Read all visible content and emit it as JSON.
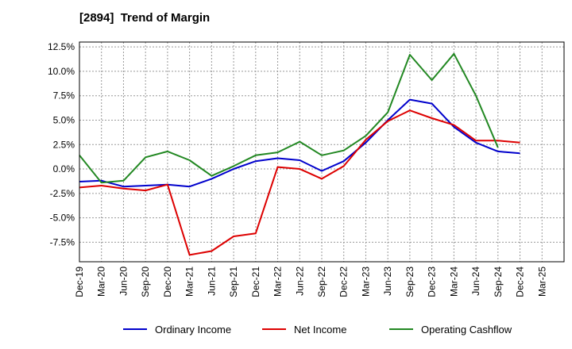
{
  "chart_data": {
    "type": "line",
    "title": "[2894]  Trend of Margin",
    "xlabel": "",
    "ylabel": "",
    "x_ticks": [
      "Dec-19",
      "Mar-20",
      "Jun-20",
      "Sep-20",
      "Dec-20",
      "Mar-21",
      "Jun-21",
      "Sep-21",
      "Dec-21",
      "Mar-22",
      "Jun-22",
      "Sep-22",
      "Dec-22",
      "Mar-23",
      "Jun-23",
      "Sep-23",
      "Dec-23",
      "Mar-24",
      "Jun-24",
      "Sep-24",
      "Dec-24",
      "Mar-25"
    ],
    "y_ticks": [
      "12.5%",
      "10.0%",
      "7.5%",
      "5.0%",
      "2.5%",
      "0.0%",
      "-2.5%",
      "-5.0%",
      "-7.5%"
    ],
    "y_tick_values": [
      12.5,
      10.0,
      7.5,
      5.0,
      2.5,
      0.0,
      -2.5,
      -5.0,
      -7.5
    ],
    "ylim": [
      -9.5,
      13.0
    ],
    "grid": true,
    "legend_position": "bottom",
    "series": [
      {
        "name": "Ordinary Income",
        "color": "#0000cc",
        "values": [
          -1.3,
          -1.2,
          -1.8,
          -1.7,
          -1.6,
          -1.8,
          -1.0,
          0.0,
          0.8,
          1.1,
          0.9,
          -0.2,
          0.8,
          2.7,
          5.0,
          7.1,
          6.7,
          4.3,
          2.7,
          1.8,
          1.6
        ]
      },
      {
        "name": "Net Income",
        "color": "#dd0000",
        "values": [
          -1.9,
          -1.7,
          -2.0,
          -2.2,
          -1.6,
          -8.8,
          -8.4,
          -6.9,
          -6.6,
          0.2,
          0.0,
          -1.0,
          0.3,
          3.0,
          4.9,
          6.0,
          5.2,
          4.5,
          2.9,
          2.9,
          2.7
        ]
      },
      {
        "name": "Operating Cashflow",
        "color": "#228822",
        "values": [
          1.4,
          -1.4,
          -1.2,
          1.2,
          1.8,
          0.9,
          -0.7,
          0.3,
          1.4,
          1.7,
          2.8,
          1.4,
          1.9,
          3.4,
          5.8,
          11.7,
          9.1,
          11.8,
          7.5,
          2.2,
          null
        ]
      }
    ]
  }
}
